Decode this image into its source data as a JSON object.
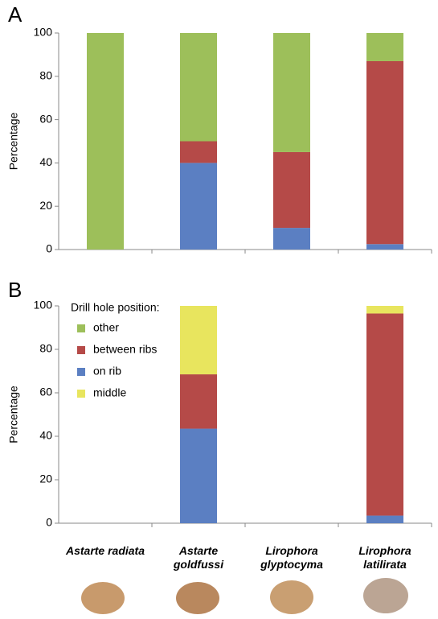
{
  "chart_data": [
    {
      "type": "stacked_bar",
      "panel_label": "A",
      "ylabel": "Percentage",
      "ylim": [
        0,
        100
      ],
      "yticks": [
        0,
        20,
        40,
        60,
        80,
        100
      ],
      "series": [
        {
          "color": "#5b7fc2",
          "values": [
            0,
            40,
            10,
            2.5
          ]
        },
        {
          "color": "#b54a48",
          "values": [
            0,
            10,
            35,
            84.5
          ]
        },
        {
          "color": "#9dbf5a",
          "values": [
            100,
            50,
            55,
            13
          ]
        }
      ]
    },
    {
      "type": "stacked_bar",
      "panel_label": "B",
      "ylabel": "Percentage",
      "ylim": [
        0,
        100
      ],
      "yticks": [
        0,
        20,
        40,
        60,
        80,
        100
      ],
      "categories": [
        "Astarte radiata",
        "Astarte goldfussi",
        "Lirophora glyptocyma",
        "Lirophora latilirata"
      ],
      "legend_title": "Drill hole position:",
      "series": [
        {
          "name": "on rib",
          "color": "#5b7fc2",
          "values": [
            null,
            43.5,
            null,
            3.5
          ]
        },
        {
          "name": "between ribs",
          "color": "#b54a48",
          "values": [
            null,
            25,
            null,
            93
          ]
        },
        {
          "name": "middle",
          "color": "#e8e55e",
          "values": [
            null,
            31.5,
            null,
            3.5
          ]
        },
        {
          "name": "other",
          "color": "#9dbf5a",
          "values": [
            null,
            0,
            null,
            0
          ]
        }
      ]
    }
  ]
}
